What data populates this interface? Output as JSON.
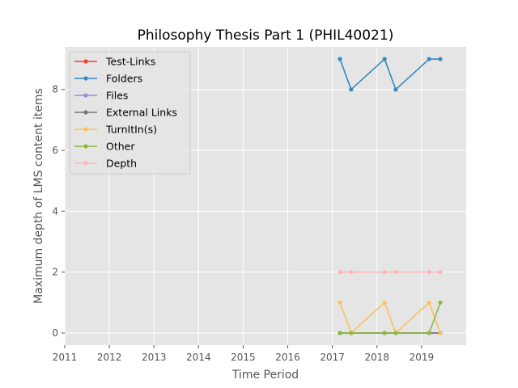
{
  "chart_data": {
    "type": "line",
    "title": "Philosophy Thesis Part 1 (PHIL40021)",
    "xlabel": "Time Period",
    "ylabel": "Maximum depth of LMS content items",
    "xlim": [
      2011,
      2020
    ],
    "ylim": [
      -0.4,
      9.4
    ],
    "x_ticks": [
      2011,
      2012,
      2013,
      2014,
      2015,
      2016,
      2017,
      2018,
      2019
    ],
    "y_ticks": [
      0,
      2,
      4,
      6,
      8
    ],
    "grid": true,
    "legend_position": "upper-left",
    "x": [
      2017.17,
      2017.42,
      2018.17,
      2018.42,
      2019.17,
      2019.42
    ],
    "series": [
      {
        "name": "Test-Links",
        "color": "#e24a33",
        "values": [
          0,
          0,
          0,
          0,
          0,
          0
        ]
      },
      {
        "name": "Folders",
        "color": "#348abd",
        "values": [
          9,
          8,
          9,
          8,
          9,
          9
        ]
      },
      {
        "name": "Files",
        "color": "#988ed5",
        "values": [
          0,
          0,
          0,
          0,
          0,
          0
        ]
      },
      {
        "name": "External Links",
        "color": "#777777",
        "values": [
          0,
          0,
          0,
          0,
          0,
          0
        ]
      },
      {
        "name": "TurnItIn(s)",
        "color": "#fbc15e",
        "values": [
          1,
          0,
          1,
          0,
          1,
          0
        ]
      },
      {
        "name": "Other",
        "color": "#8eba42",
        "values": [
          0,
          0,
          0,
          0,
          0,
          1
        ]
      },
      {
        "name": "Depth",
        "color": "#ffb5b8",
        "values": [
          2,
          2,
          2,
          2,
          2,
          2
        ]
      }
    ]
  }
}
